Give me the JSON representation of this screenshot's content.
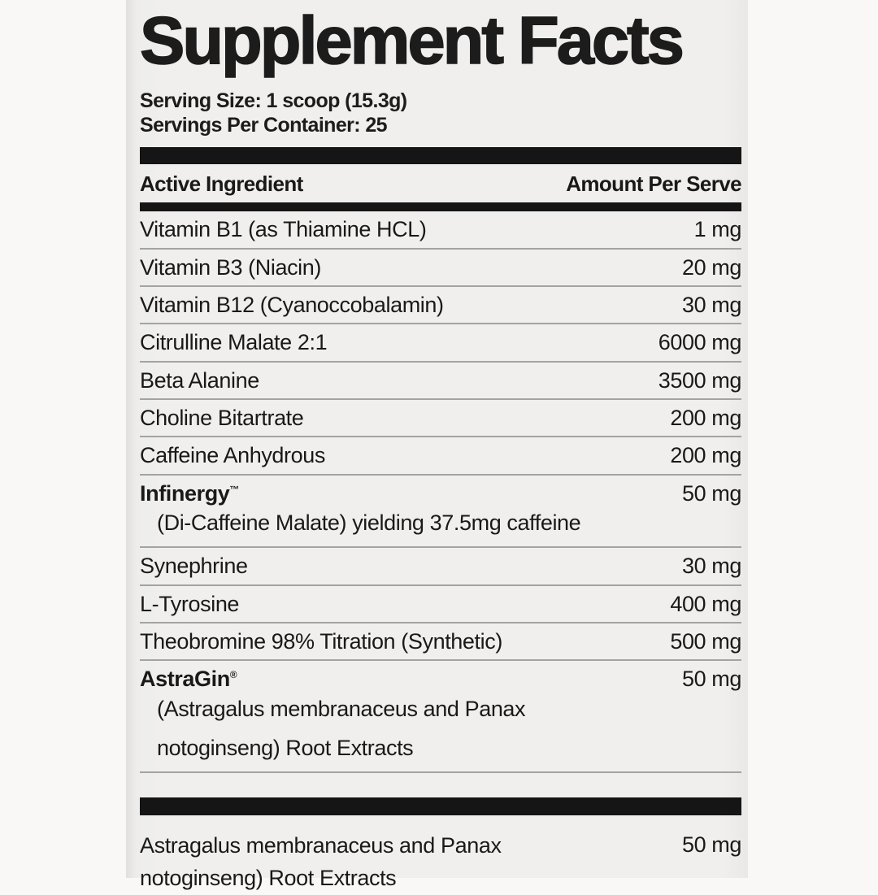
{
  "label": {
    "title": "Supplement Facts",
    "serving_size": "Serving Size: 1 scoop (15.3g)",
    "servings_per_container": "Servings Per Container: 25",
    "columns": {
      "ingredient": "Active Ingredient",
      "amount": "Amount Per Serve"
    },
    "rows": [
      {
        "name": "Vitamin B1 (as Thiamine HCL)",
        "amount": "1 mg"
      },
      {
        "name": "Vitamin B3 (Niacin)",
        "amount": "20 mg"
      },
      {
        "name": "Vitamin B12 (Cyanoccobalamin)",
        "amount": "30 mg"
      },
      {
        "name": "Citrulline Malate 2:1",
        "amount": "6000 mg"
      },
      {
        "name": "Beta Alanine",
        "amount": "3500 mg"
      },
      {
        "name": "Choline Bitartrate",
        "amount": "200 mg"
      },
      {
        "name": "Caffeine Anhydrous",
        "amount": "200 mg"
      },
      {
        "name": "Infinergy",
        "mark": "™",
        "amount": "50 mg",
        "sublines": [
          "(Di-Caffeine Malate) yielding 37.5mg caffeine"
        ]
      },
      {
        "name": "Synephrine",
        "amount": "30 mg"
      },
      {
        "name": "L-Tyrosine",
        "amount": "400 mg"
      },
      {
        "name": "Theobromine 98% Titration (Synthetic)",
        "amount": "500 mg"
      },
      {
        "name": "AstraGin",
        "mark": "®",
        "amount": "50 mg",
        "sublines": [
          "(Astragalus membranaceus and Panax",
          "notoginseng) Root Extracts"
        ]
      }
    ],
    "footer": {
      "lines": [
        "Astragalus membranaceus and Panax",
        "notoginseng) Root Extracts"
      ],
      "amount": "50 mg"
    },
    "colors": {
      "panel_background": "#f0efed",
      "bar_black": "#151515",
      "separator_gray": "#a5a3a1",
      "text": "#191919"
    }
  }
}
